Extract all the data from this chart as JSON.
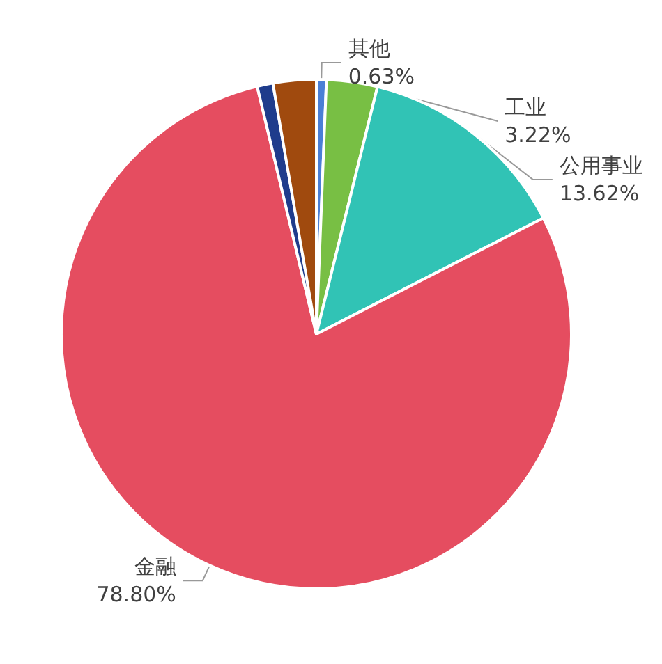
{
  "chart_data": {
    "type": "pie",
    "categories": [
      "其他",
      "工业",
      "公用事业",
      "金融",
      null,
      null
    ],
    "values": [
      0.63,
      3.22,
      13.62,
      78.8,
      1.0,
      2.73
    ],
    "value_labels": [
      "0.63%",
      "3.22%",
      "13.62%",
      "78.80%",
      null,
      null
    ],
    "colors": [
      "#4a7fd6",
      "#78bf44",
      "#31c3b5",
      "#e54d60",
      "#1f3c8c",
      "#a04a0e"
    ]
  }
}
